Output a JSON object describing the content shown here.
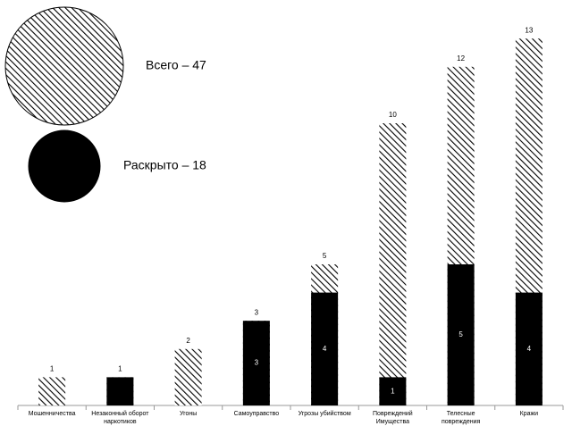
{
  "chart_data": {
    "type": "bar",
    "categories": [
      "Мошенничества",
      "Незаконный оборот\nнаркотиков",
      "Угоны",
      "Самоуправство",
      "Угрозы убийством",
      "Повреждений\nИмущества",
      "Телесные повреждения",
      "Кражи"
    ],
    "series": [
      {
        "name": "Всего – 47",
        "color": "#000000",
        "pattern": "hatch",
        "values": [
          1,
          1,
          2,
          3,
          5,
          10,
          12,
          13
        ]
      },
      {
        "name": "Раскрыто – 18",
        "color": "#000000",
        "pattern": "solid",
        "values": [
          null,
          1,
          null,
          3,
          4,
          1,
          5,
          4
        ],
        "value_labels": [
          null,
          null,
          null,
          "3",
          "4",
          "1",
          "5",
          "4"
        ]
      }
    ],
    "ylim": [
      0,
      14
    ]
  }
}
